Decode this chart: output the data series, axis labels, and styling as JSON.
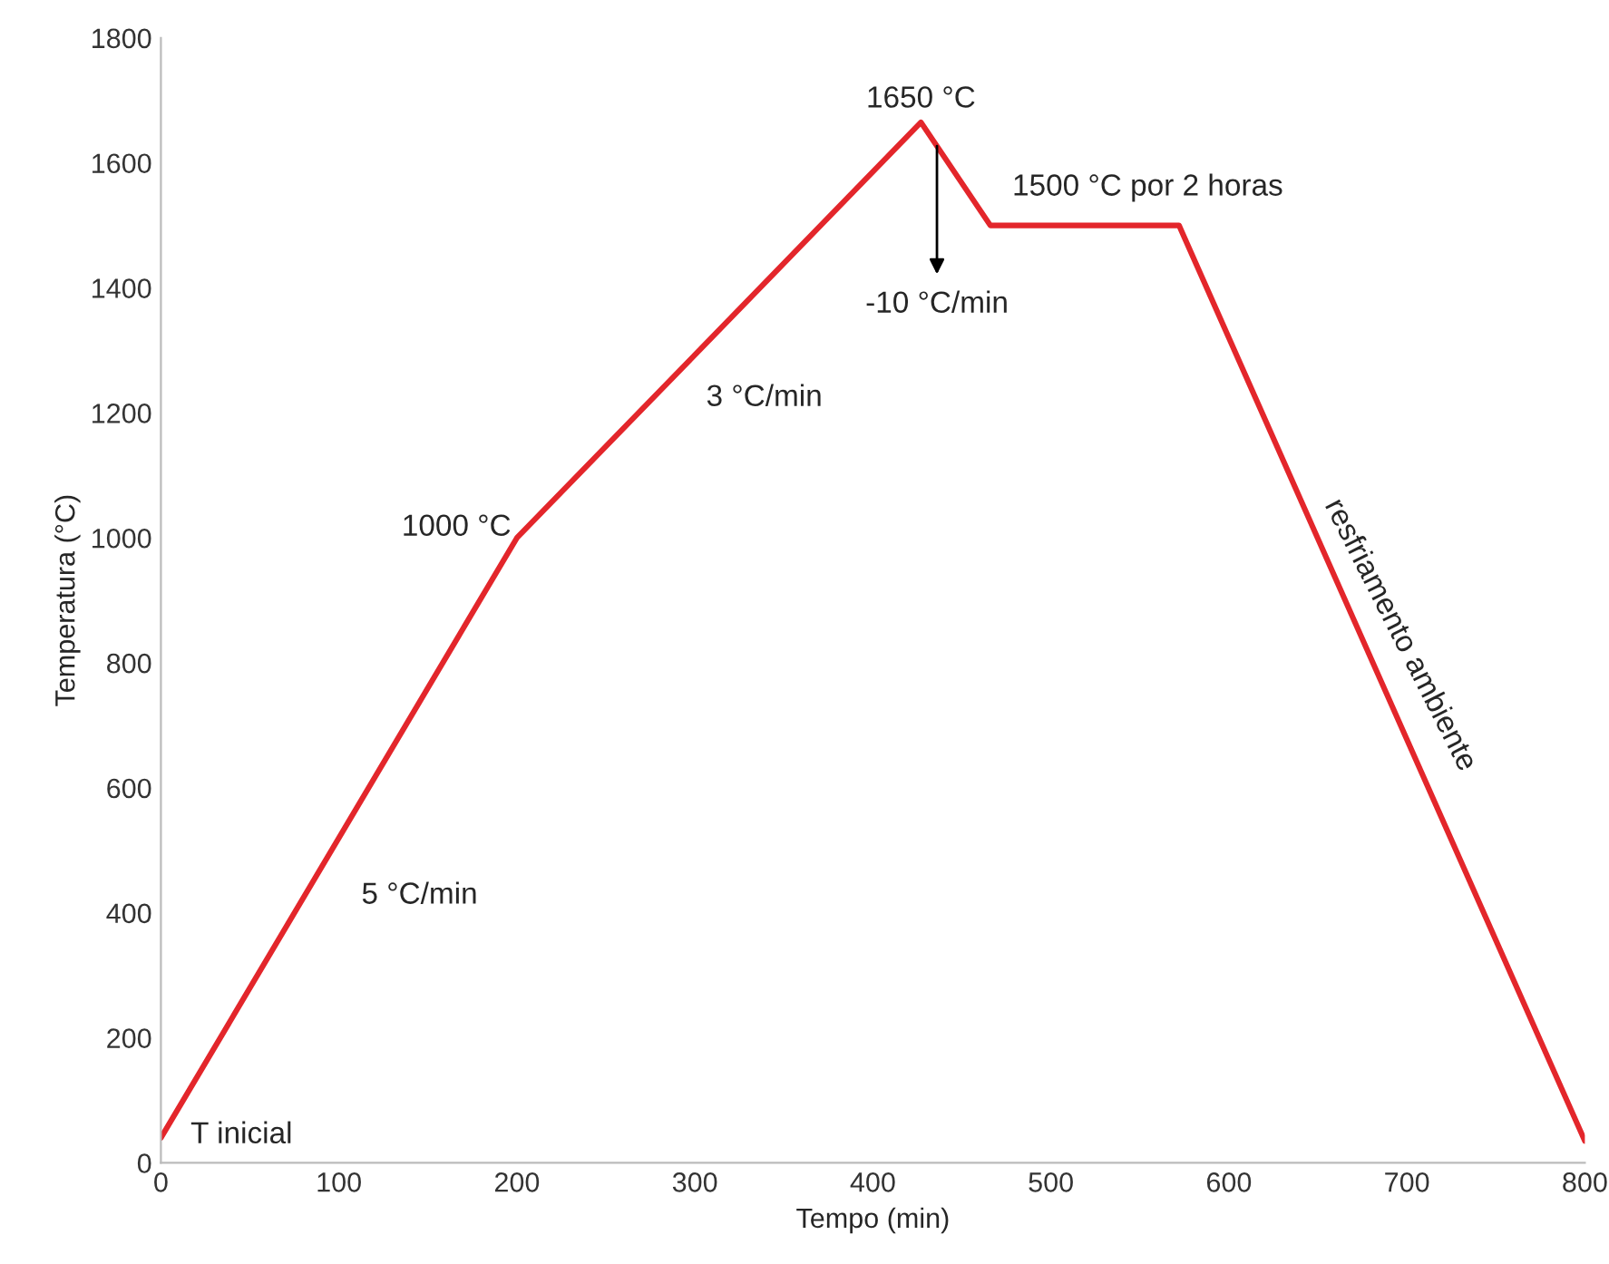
{
  "chart_data": {
    "type": "line",
    "xlabel": "Tempo (min)",
    "ylabel": "Temperatura (°C)",
    "x": [
      0,
      200,
      427,
      466,
      572,
      800
    ],
    "series": [
      {
        "color": "#e3262b",
        "values": [
          40,
          1000,
          1665,
          1500,
          1500,
          35
        ]
      }
    ],
    "xlim": [
      0,
      800
    ],
    "ylim": [
      0,
      1800
    ],
    "xticks": [
      0,
      100,
      200,
      300,
      400,
      500,
      600,
      700,
      800
    ],
    "yticks": [
      0,
      200,
      400,
      600,
      800,
      1000,
      1200,
      1400,
      1600,
      1800
    ],
    "grid": false,
    "legend": false,
    "marker": "none",
    "line_style": "solid",
    "annotations": [
      {
        "text": "T inicial",
        "x": 0,
        "y": 40
      },
      {
        "text": "5 °C/min",
        "x": 100,
        "y": 520
      },
      {
        "text": "1000 °C",
        "x": 200,
        "y": 1000
      },
      {
        "text": "3 °C/min",
        "x": 313.5,
        "y": 1332.5
      },
      {
        "text": "1650 °C",
        "x": 427,
        "y": 1665
      },
      {
        "text": "1500 °C por 2 horas",
        "x": 519,
        "y": 1500
      },
      {
        "text": "-10 °C/min",
        "x": 436,
        "y": 1627
      },
      {
        "text": "resfriamento ambiente",
        "x": 686,
        "y": 767.5
      }
    ]
  }
}
